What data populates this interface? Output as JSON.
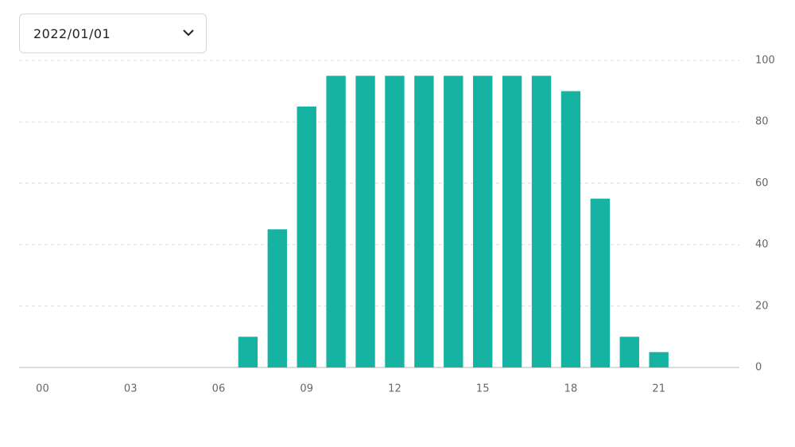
{
  "date_picker": {
    "value": "2022/01/01"
  },
  "chart_data": {
    "type": "bar",
    "categories": [
      "00",
      null,
      null,
      "03",
      null,
      null,
      "06",
      null,
      null,
      "09",
      null,
      null,
      "12",
      null,
      null,
      "15",
      null,
      null,
      "18",
      null,
      null,
      "21",
      null,
      null
    ],
    "values": [
      0,
      0,
      0,
      0,
      0,
      0,
      0,
      10,
      45,
      85,
      95,
      95,
      95,
      95,
      95,
      95,
      95,
      95,
      90,
      55,
      10,
      5,
      0,
      0
    ],
    "color": "#16b3a3",
    "ylim": [
      0,
      100
    ],
    "yticks": [
      0,
      20,
      40,
      60,
      80,
      100
    ],
    "grid": true
  }
}
